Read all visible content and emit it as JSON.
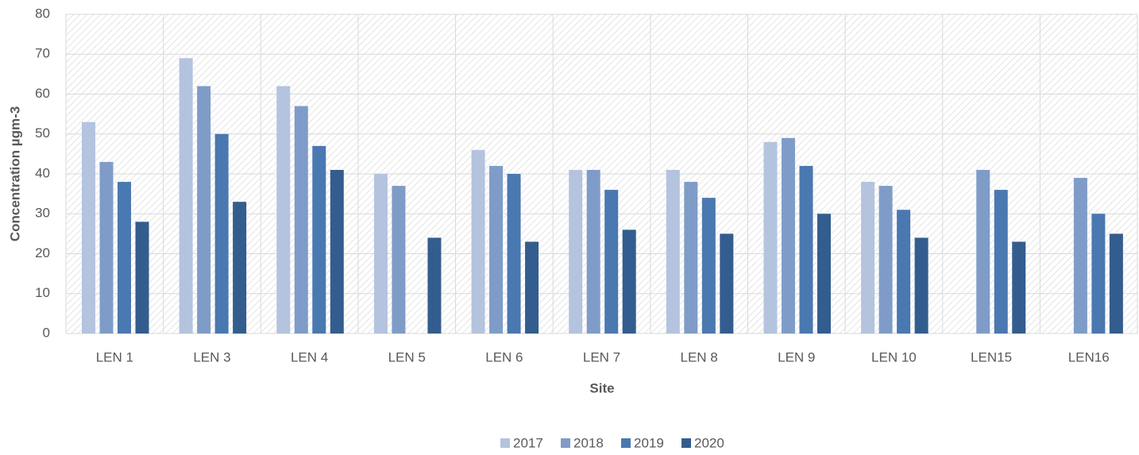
{
  "chart_data": {
    "type": "bar",
    "x_label": "Site",
    "y_label": "Concentration µgm-3",
    "categories": [
      "LEN 1",
      "LEN 3",
      "LEN 4",
      "LEN 5",
      "LEN 6",
      "LEN 7",
      "LEN 8",
      "LEN 9",
      "LEN 10",
      "LEN15",
      "LEN16"
    ],
    "series": [
      {
        "name": "2017",
        "color": "#b4c3de",
        "values": [
          53,
          69,
          62,
          40,
          46,
          41,
          41,
          48,
          38,
          null,
          null
        ]
      },
      {
        "name": "2018",
        "color": "#7f9cc8",
        "values": [
          43,
          62,
          57,
          37,
          42,
          41,
          38,
          49,
          37,
          41,
          39
        ]
      },
      {
        "name": "2019",
        "color": "#4a78b0",
        "values": [
          38,
          50,
          47,
          null,
          40,
          36,
          34,
          42,
          31,
          36,
          30
        ]
      },
      {
        "name": "2020",
        "color": "#335d8e",
        "values": [
          28,
          33,
          41,
          24,
          23,
          26,
          25,
          30,
          24,
          23,
          25
        ]
      }
    ],
    "ylim": [
      0,
      80
    ],
    "yticks": [
      0,
      10,
      20,
      30,
      40,
      50,
      60,
      70,
      80
    ],
    "grid": true,
    "legend": "bottom"
  }
}
